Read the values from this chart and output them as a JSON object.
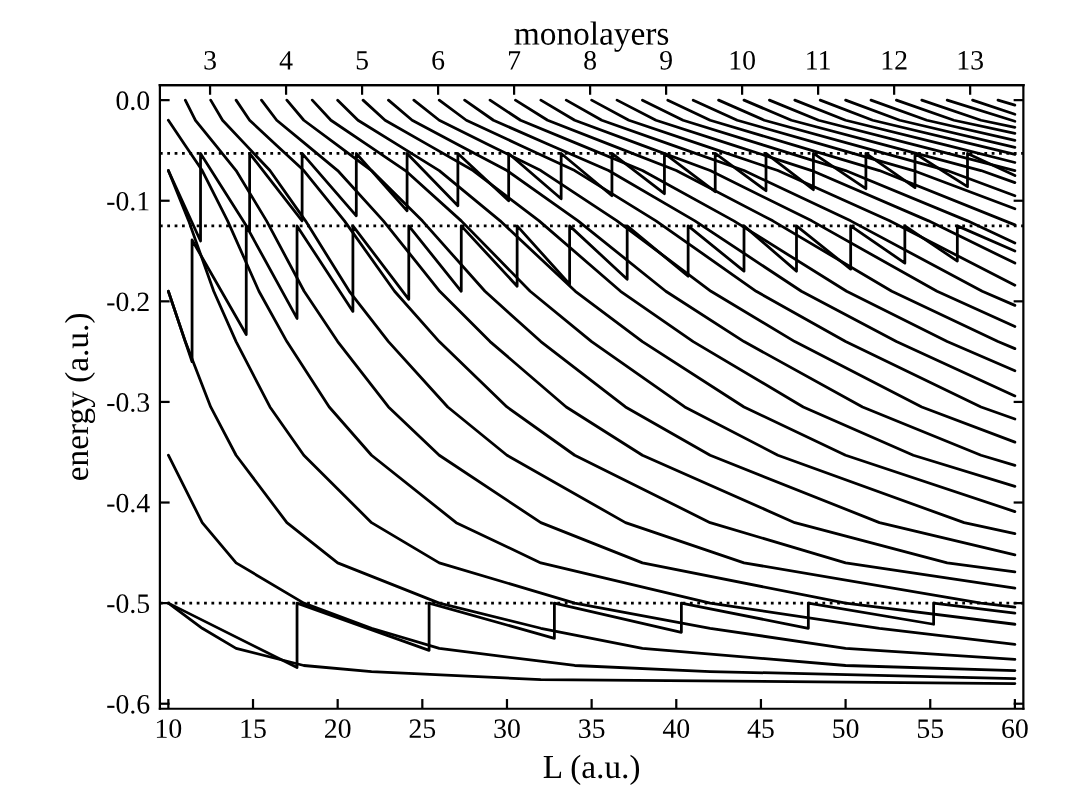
{
  "chart_data": {
    "type": "line",
    "xlabel": "L (a.u.)",
    "ylabel": "energy (a.u.)",
    "x2label": "monolayers",
    "xlim": [
      9.5,
      60.5
    ],
    "xticks": [
      10,
      15,
      20,
      25,
      30,
      35,
      40,
      45,
      50,
      55,
      60
    ],
    "x2lim": [
      2.34,
      13.7
    ],
    "x2ticks": [
      3,
      4,
      5,
      6,
      7,
      8,
      9,
      10,
      11,
      12,
      13
    ],
    "ylim": [
      -0.605,
      0.015
    ],
    "yticks": [
      {
        "value": 0,
        "label": "0.0"
      },
      {
        "value": -0.1,
        "label": "-0.1"
      },
      {
        "value": -0.2,
        "label": "-0.2"
      },
      {
        "value": -0.3,
        "label": "-0.3"
      },
      {
        "value": -0.4,
        "label": "-0.4"
      },
      {
        "value": -0.5,
        "label": "-0.5"
      },
      {
        "value": -0.6,
        "label": "-0.6"
      }
    ],
    "grid": false,
    "legend": false,
    "marker": "none",
    "line_style": "solid",
    "ref_lines": [
      {
        "axis": "y",
        "value": -0.053,
        "color": "#000000",
        "line_style": "dotted"
      },
      {
        "axis": "y",
        "value": -0.125,
        "color": "#000000",
        "line_style": "dotted"
      },
      {
        "axis": "y",
        "value": -0.5,
        "color": "#000000",
        "line_style": "dotted"
      }
    ],
    "series": [
      {
        "color": "#000000",
        "x": [
          10,
          12,
          14,
          18,
          22,
          32,
          60
        ],
        "values": [
          -0.5,
          -0.525,
          -0.545,
          -0.562,
          -0.568,
          -0.576,
          -0.58
        ]
      },
      {
        "color": "#000000",
        "x": [
          10,
          12,
          14,
          18,
          22,
          26,
          34,
          42,
          60
        ],
        "values": [
          -0.353,
          -0.42,
          -0.46,
          -0.5,
          -0.525,
          -0.545,
          -0.562,
          -0.568,
          -0.575
        ]
      },
      {
        "color": "#000000",
        "x": [
          10,
          11,
          12.5,
          14,
          17,
          20,
          26,
          32,
          38,
          50,
          60
        ],
        "values": [
          -0.19,
          -0.24,
          -0.305,
          -0.353,
          -0.42,
          -0.46,
          -0.5,
          -0.525,
          -0.545,
          -0.562,
          -0.567
        ]
      },
      {
        "color": "#000000",
        "x": [
          10,
          11.2,
          12.68,
          14,
          16,
          18,
          22,
          26,
          34,
          42,
          50,
          60
        ],
        "values": [
          -0.07,
          -0.12,
          -0.19,
          -0.24,
          -0.305,
          -0.353,
          -0.42,
          -0.46,
          -0.5,
          -0.525,
          -0.545,
          -0.556
        ]
      },
      {
        "color": "#000000",
        "x": [
          10,
          11,
          12,
          13.5,
          15.35,
          17,
          19.5,
          22,
          27,
          32,
          42,
          52,
          60
        ],
        "values": [
          -0.02,
          -0.045,
          -0.07,
          -0.12,
          -0.19,
          -0.24,
          -0.305,
          -0.353,
          -0.42,
          -0.46,
          -0.5,
          -0.525,
          -0.541
        ]
      },
      {
        "color": "#000000",
        "x": [
          11,
          11.6,
          12.8,
          14,
          15.8,
          18.02,
          20,
          23,
          26,
          32,
          38,
          50,
          60
        ],
        "values": [
          0,
          -0.02,
          -0.045,
          -0.07,
          -0.12,
          -0.19,
          -0.24,
          -0.305,
          -0.353,
          -0.42,
          -0.46,
          -0.5,
          -0.521
        ]
      },
      {
        "color": "#000000",
        "x": [
          12.5,
          13.2,
          14.6,
          16,
          18.1,
          20.69,
          23,
          26.5,
          30,
          37,
          44,
          58,
          60
        ],
        "values": [
          0,
          -0.02,
          -0.045,
          -0.07,
          -0.12,
          -0.19,
          -0.24,
          -0.305,
          -0.353,
          -0.42,
          -0.46,
          -0.5,
          -0.504
        ]
      },
      {
        "color": "#000000",
        "x": [
          14,
          14.8,
          16.4,
          18,
          20.4,
          23.36,
          26,
          30,
          34,
          42,
          50,
          60
        ],
        "values": [
          0,
          -0.02,
          -0.045,
          -0.07,
          -0.12,
          -0.19,
          -0.24,
          -0.305,
          -0.353,
          -0.42,
          -0.46,
          -0.485
        ]
      },
      {
        "color": "#000000",
        "x": [
          15.5,
          16.4,
          18.2,
          20,
          22.7,
          26.03,
          29,
          33.5,
          38,
          47,
          56,
          60
        ],
        "values": [
          0,
          -0.02,
          -0.045,
          -0.07,
          -0.12,
          -0.19,
          -0.24,
          -0.305,
          -0.353,
          -0.42,
          -0.46,
          -0.469
        ]
      },
      {
        "color": "#000000",
        "x": [
          17,
          18,
          20,
          22,
          25,
          28.7,
          32,
          37,
          42,
          52,
          60
        ],
        "values": [
          0,
          -0.02,
          -0.045,
          -0.07,
          -0.12,
          -0.19,
          -0.24,
          -0.305,
          -0.353,
          -0.42,
          -0.452
        ]
      },
      {
        "color": "#000000",
        "x": [
          18.5,
          19.6,
          21.8,
          24,
          27.3,
          31.37,
          35,
          40.5,
          46,
          57,
          60
        ],
        "values": [
          0,
          -0.02,
          -0.045,
          -0.07,
          -0.12,
          -0.19,
          -0.24,
          -0.305,
          -0.353,
          -0.42,
          -0.431
        ]
      },
      {
        "color": "#000000",
        "x": [
          20,
          21.2,
          23.6,
          26,
          29.6,
          34.04,
          38,
          44,
          50,
          60
        ],
        "values": [
          0,
          -0.02,
          -0.045,
          -0.07,
          -0.12,
          -0.19,
          -0.24,
          -0.305,
          -0.353,
          -0.409
        ]
      },
      {
        "color": "#000000",
        "x": [
          21.5,
          22.8,
          25.4,
          28,
          31.9,
          36.71,
          41,
          47.5,
          54,
          60
        ],
        "values": [
          0,
          -0.02,
          -0.045,
          -0.07,
          -0.12,
          -0.19,
          -0.24,
          -0.305,
          -0.353,
          -0.384
        ]
      },
      {
        "color": "#000000",
        "x": [
          23,
          24.4,
          27.2,
          30,
          34.2,
          39.38,
          44,
          51,
          58,
          60
        ],
        "values": [
          0,
          -0.02,
          -0.045,
          -0.07,
          -0.12,
          -0.19,
          -0.24,
          -0.305,
          -0.353,
          -0.363
        ]
      },
      {
        "color": "#000000",
        "x": [
          24.5,
          26,
          29,
          32,
          36.5,
          42.05,
          47,
          54.5,
          60
        ],
        "values": [
          0,
          -0.02,
          -0.045,
          -0.07,
          -0.12,
          -0.19,
          -0.24,
          -0.305,
          -0.34
        ]
      },
      {
        "color": "#000000",
        "x": [
          26,
          27.6,
          30.8,
          34,
          38.8,
          44.72,
          50,
          58,
          60
        ],
        "values": [
          0,
          -0.02,
          -0.045,
          -0.07,
          -0.12,
          -0.19,
          -0.24,
          -0.305,
          -0.317
        ]
      },
      {
        "color": "#000000",
        "x": [
          27.5,
          29.2,
          32.6,
          36,
          41.1,
          47.39,
          53,
          60
        ],
        "values": [
          0,
          -0.02,
          -0.045,
          -0.07,
          -0.12,
          -0.19,
          -0.24,
          -0.294
        ]
      },
      {
        "color": "#000000",
        "x": [
          29,
          30.8,
          34.4,
          38,
          43.4,
          50.06,
          56,
          60
        ],
        "values": [
          0,
          -0.02,
          -0.045,
          -0.07,
          -0.12,
          -0.19,
          -0.24,
          -0.269
        ]
      },
      {
        "color": "#000000",
        "x": [
          30.5,
          32.4,
          36.2,
          40,
          45.7,
          52.73,
          59,
          60
        ],
        "values": [
          0,
          -0.02,
          -0.045,
          -0.07,
          -0.12,
          -0.19,
          -0.24,
          -0.247
        ]
      },
      {
        "color": "#000000",
        "x": [
          32,
          34,
          38,
          42,
          48,
          55.4,
          60
        ],
        "values": [
          0,
          -0.02,
          -0.045,
          -0.07,
          -0.12,
          -0.19,
          -0.225
        ]
      },
      {
        "color": "#000000",
        "x": [
          33.5,
          35.6,
          39.8,
          44,
          50.3,
          58.07,
          60
        ],
        "values": [
          0,
          -0.02,
          -0.045,
          -0.07,
          -0.12,
          -0.19,
          -0.204
        ]
      },
      {
        "color": "#000000",
        "x": [
          35,
          37.2,
          41.6,
          46,
          52.6,
          60
        ],
        "values": [
          0,
          -0.02,
          -0.045,
          -0.07,
          -0.12,
          -0.184
        ]
      },
      {
        "color": "#000000",
        "x": [
          36.5,
          38.8,
          43.4,
          48,
          54.9,
          60
        ],
        "values": [
          0,
          -0.02,
          -0.045,
          -0.07,
          -0.12,
          -0.162
        ]
      },
      {
        "color": "#000000",
        "x": [
          38,
          40.4,
          45.2,
          50,
          57.2,
          60
        ],
        "values": [
          0,
          -0.02,
          -0.045,
          -0.07,
          -0.12,
          -0.142
        ]
      },
      {
        "color": "#000000",
        "x": [
          39.5,
          42,
          47,
          52,
          60
        ],
        "values": [
          0,
          -0.02,
          -0.045,
          -0.07,
          -0.124
        ]
      },
      {
        "color": "#000000",
        "x": [
          41,
          43.6,
          48.8,
          54,
          60
        ],
        "values": [
          0,
          -0.02,
          -0.045,
          -0.07,
          -0.108
        ]
      },
      {
        "color": "#000000",
        "x": [
          42.5,
          45.2,
          50.6,
          56,
          60
        ],
        "values": [
          0,
          -0.02,
          -0.045,
          -0.07,
          -0.095
        ]
      },
      {
        "color": "#000000",
        "x": [
          44,
          46.8,
          52.4,
          58,
          60
        ],
        "values": [
          0,
          -0.02,
          -0.045,
          -0.07,
          -0.082
        ]
      },
      {
        "color": "#000000",
        "x": [
          45.5,
          48.4,
          54.2,
          60
        ],
        "values": [
          0,
          -0.02,
          -0.045,
          -0.07
        ]
      },
      {
        "color": "#000000",
        "x": [
          47,
          50,
          56,
          60
        ],
        "values": [
          0,
          -0.02,
          -0.045,
          -0.062
        ]
      },
      {
        "color": "#000000",
        "x": [
          48.5,
          51.6,
          57.8,
          60
        ],
        "values": [
          0,
          -0.02,
          -0.045,
          -0.054
        ]
      },
      {
        "color": "#000000",
        "x": [
          50,
          53.2,
          60
        ],
        "values": [
          0,
          -0.02,
          -0.047
        ]
      },
      {
        "color": "#000000",
        "x": [
          51.5,
          54.8,
          60
        ],
        "values": [
          0,
          -0.02,
          -0.04
        ]
      },
      {
        "color": "#000000",
        "x": [
          53,
          56.4,
          60
        ],
        "values": [
          0,
          -0.02,
          -0.033
        ]
      },
      {
        "color": "#000000",
        "x": [
          54.5,
          58,
          60
        ],
        "values": [
          0,
          -0.02,
          -0.027
        ]
      },
      {
        "color": "#000000",
        "x": [
          56,
          60
        ],
        "values": [
          0,
          -0.021
        ]
      },
      {
        "color": "#000000",
        "x": [
          57.5,
          60
        ],
        "values": [
          0,
          -0.014
        ]
      },
      {
        "color": "#000000",
        "x": [
          59,
          60
        ],
        "values": [
          0,
          -0.005
        ]
      },
      {
        "color": "#000000",
        "x": [
          10,
          11.9,
          11.9,
          14.8,
          14.8,
          17.9,
          17.9,
          21.1,
          21.1,
          24.1,
          24.1,
          27.1,
          27.1,
          30.1,
          30.1,
          33.2,
          33.2,
          36.2,
          36.2,
          39.3,
          39.3,
          42.3,
          42.3,
          45.3,
          45.3,
          48.1,
          48.1,
          51.2,
          51.2,
          54.1,
          54.1,
          57.2,
          57.2,
          60
        ],
        "values": [
          -0.07,
          -0.14,
          -0.053,
          -0.13,
          -0.053,
          -0.12,
          -0.053,
          -0.115,
          -0.053,
          -0.11,
          -0.053,
          -0.105,
          -0.053,
          -0.1,
          -0.053,
          -0.098,
          -0.053,
          -0.095,
          -0.053,
          -0.093,
          -0.053,
          -0.091,
          -0.053,
          -0.09,
          -0.053,
          -0.089,
          -0.053,
          -0.088,
          -0.053,
          -0.087,
          -0.053,
          -0.086,
          -0.053,
          -0.075
        ]
      },
      {
        "color": "#000000",
        "x": [
          10,
          11.4,
          11.4,
          14.6,
          14.6,
          17.6,
          17.6,
          20.9,
          20.9,
          24.2,
          24.2,
          27.3,
          27.3,
          30.6,
          30.6,
          33.7,
          33.7,
          37.1,
          37.1,
          40.7,
          40.7,
          44,
          44,
          47.1,
          47.1,
          50.3,
          50.3,
          53.5,
          53.5,
          56.6,
          56.6,
          60
        ],
        "values": [
          -0.19,
          -0.26,
          -0.139,
          -0.233,
          -0.125,
          -0.217,
          -0.125,
          -0.21,
          -0.125,
          -0.198,
          -0.125,
          -0.19,
          -0.125,
          -0.185,
          -0.125,
          -0.183,
          -0.125,
          -0.178,
          -0.125,
          -0.175,
          -0.125,
          -0.17,
          -0.125,
          -0.17,
          -0.125,
          -0.168,
          -0.125,
          -0.162,
          -0.125,
          -0.16,
          -0.125,
          -0.15
        ]
      },
      {
        "color": "#000000",
        "x": [
          10,
          17.6,
          17.6,
          25.4,
          25.4,
          32.8,
          32.8,
          40.3,
          40.3,
          47.8,
          47.8,
          55.2,
          55.2,
          60
        ],
        "values": [
          -0.5,
          -0.564,
          -0.5,
          -0.547,
          -0.5,
          -0.535,
          -0.5,
          -0.529,
          -0.5,
          -0.525,
          -0.5,
          -0.521,
          -0.5,
          -0.51
        ]
      }
    ]
  }
}
